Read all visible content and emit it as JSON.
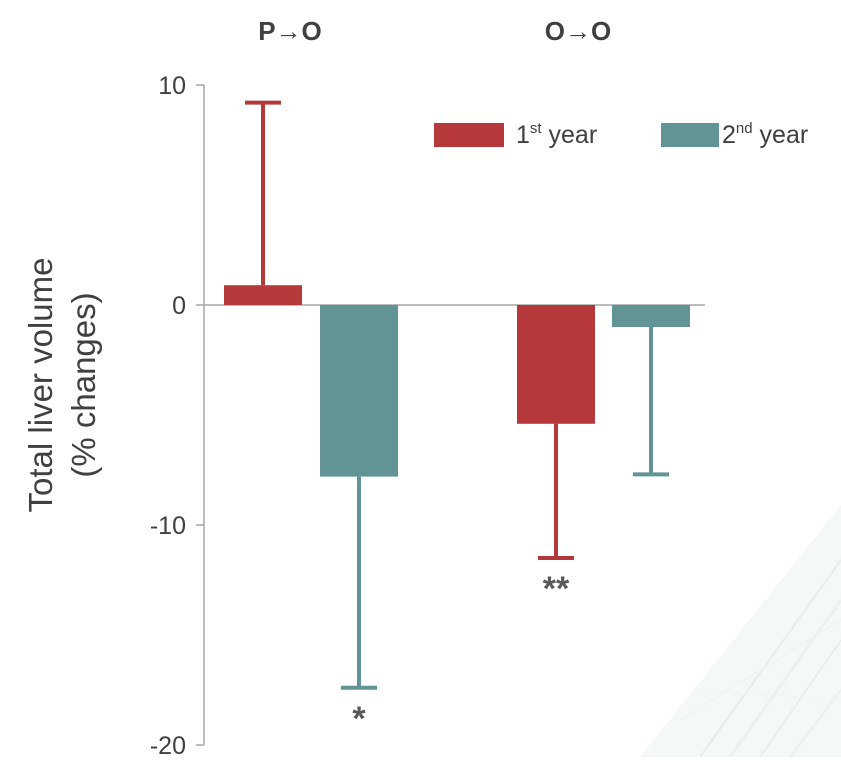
{
  "chart_data": {
    "type": "bar",
    "categories": [
      "P→O",
      "O→O"
    ],
    "ylabel_line1": "Total liver volume",
    "ylabel_line2": "(% changes)",
    "ylim": [
      -20,
      10
    ],
    "yticks": [
      10,
      0,
      -10,
      -20
    ],
    "grid": false,
    "legend_position": "top-right",
    "series": [
      {
        "name_base": "1",
        "name_sup": "st",
        "name_rest": " year",
        "color": "#b5393b",
        "values": [
          0.9,
          -5.4
        ],
        "error_end": [
          9.2,
          -11.5
        ]
      },
      {
        "name_base": "2",
        "name_sup": "nd",
        "name_rest": " year",
        "color": "#629496",
        "values": [
          -7.8,
          -1.0
        ],
        "error_end": [
          -17.4,
          -7.7
        ]
      }
    ],
    "annotations": [
      {
        "text": "*",
        "series": 1,
        "category": 0
      },
      {
        "text": "**",
        "series": 0,
        "category": 1
      }
    ],
    "colors": {
      "axis": "#a6a6a6",
      "text": "#404040",
      "asterisk": "#595959"
    }
  }
}
